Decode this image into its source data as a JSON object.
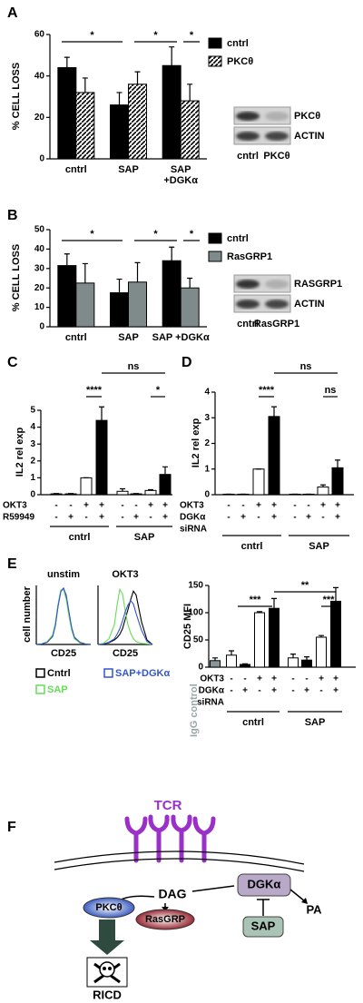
{
  "chart_data": [
    {
      "type": "bar",
      "panel": "A",
      "ylabel": "% CELL LOSS",
      "categories": [
        "cntrl",
        "SAP",
        [
          "SAP",
          "+DGKα"
        ]
      ],
      "series": [
        {
          "name": "cntrl",
          "color": "#000000",
          "values": [
            44,
            26,
            45
          ],
          "errors": [
            5,
            6,
            9
          ]
        },
        {
          "name": "PKCθ",
          "color": "#000000",
          "hatch": true,
          "values": [
            32,
            36,
            28
          ],
          "errors": [
            7,
            6,
            8
          ]
        }
      ],
      "ylim": [
        0,
        60
      ],
      "yticks": [
        0,
        20,
        40,
        60
      ],
      "annotations": [
        "*",
        "*",
        "*"
      ],
      "blot": {
        "bands": [
          "PKCθ",
          "ACTIN"
        ],
        "lanes": [
          "cntrl",
          "PKCθ"
        ]
      }
    },
    {
      "type": "bar",
      "panel": "B",
      "ylabel": "% CELL LOSS",
      "categories": [
        "cntrl",
        "SAP",
        "SAP +DGKα"
      ],
      "series": [
        {
          "name": "cntrl",
          "color": "#000000",
          "values": [
            31.5,
            17.5,
            34
          ],
          "errors": [
            6,
            7,
            7
          ]
        },
        {
          "name": "RasGRP1",
          "color": "#7f8a8a",
          "values": [
            22.5,
            23,
            20
          ],
          "errors": [
            10,
            10,
            5
          ]
        }
      ],
      "ylim": [
        0,
        50
      ],
      "yticks": [
        0,
        10,
        20,
        30,
        40,
        50
      ],
      "annotations": [
        "*",
        "*",
        "*"
      ],
      "blot": {
        "bands": [
          "RASGRP1",
          "ACTIN"
        ],
        "lanes": [
          "cntrl",
          "RasGRP1"
        ]
      }
    },
    {
      "type": "bar",
      "panel": "C",
      "ylabel": "IL2 rel exp",
      "values": [
        0.05,
        0.05,
        1,
        4.4,
        0.2,
        0.05,
        0.25,
        1.2
      ],
      "errors": [
        0.02,
        0.02,
        0,
        0.8,
        0.15,
        0.02,
        0.05,
        0.45
      ],
      "colors": [
        "#ffffff",
        "#000000",
        "#ffffff",
        "#000000",
        "#ffffff",
        "#000000",
        "#ffffff",
        "#000000"
      ],
      "ylim": [
        0,
        5
      ],
      "yticks": [
        0,
        1,
        2,
        3,
        4,
        5
      ],
      "conditions": [
        {
          "name": [
            "OKT3"
          ],
          "signs": [
            "-",
            "-",
            "+",
            "+",
            "-",
            "-",
            "+",
            "+"
          ]
        },
        {
          "name": [
            "R59949"
          ],
          "signs": [
            "-",
            "+",
            "-",
            "+",
            "-",
            "+",
            "-",
            "+"
          ]
        }
      ],
      "groups": [
        "cntrl",
        "SAP"
      ],
      "annotations": [
        "ns",
        "****",
        "*"
      ]
    },
    {
      "type": "bar",
      "panel": "D",
      "ylabel": "IL2 rel exp",
      "values": [
        0.02,
        0.02,
        1,
        3.05,
        0.02,
        0.02,
        0.3,
        1.05
      ],
      "errors": [
        0,
        0,
        0,
        0.38,
        0,
        0,
        0.08,
        0.3
      ],
      "colors": [
        "#ffffff",
        "#000000",
        "#ffffff",
        "#000000",
        "#ffffff",
        "#000000",
        "#ffffff",
        "#000000"
      ],
      "ylim": [
        0,
        4
      ],
      "yticks": [
        0,
        1,
        2,
        3,
        4
      ],
      "conditions": [
        {
          "name": [
            "OKT3"
          ],
          "signs": [
            "-",
            "-",
            "+",
            "+",
            "-",
            "-",
            "+",
            "+"
          ]
        },
        {
          "name": [
            "DGKα",
            "siRNA"
          ],
          "signs": [
            "-",
            "+",
            "-",
            "+",
            "-",
            "+",
            "-",
            "+"
          ]
        }
      ],
      "groups": [
        "cntrl",
        "SAP"
      ],
      "annotations": [
        "ns",
        "****",
        "ns"
      ]
    },
    {
      "type": "line",
      "panel": "E",
      "title": "unstim",
      "xlabel": "CD25",
      "ylabel": "cell number",
      "x": [
        0,
        10,
        20,
        30,
        35,
        40,
        45,
        50,
        55,
        60,
        65,
        70,
        80,
        90,
        100
      ],
      "xlim": [
        0,
        100
      ],
      "ylim": [
        0,
        105
      ],
      "series": [
        {
          "name": "Cntrl",
          "color": "#000000",
          "values": [
            0,
            1,
            4,
            15,
            35,
            70,
            95,
            100,
            85,
            55,
            28,
            12,
            3,
            1,
            0
          ]
        },
        {
          "name": "SAP",
          "color": "#66dd55",
          "values": [
            0,
            1,
            5,
            17,
            38,
            72,
            97,
            98,
            80,
            50,
            25,
            10,
            3,
            1,
            0
          ]
        },
        {
          "name": "SAP+DGKα",
          "color": "#3355cc",
          "values": [
            0,
            1,
            4,
            14,
            33,
            68,
            94,
            100,
            88,
            58,
            30,
            13,
            4,
            1,
            0
          ]
        }
      ]
    },
    {
      "type": "line",
      "title": "OKT3",
      "xlabel": "CD25",
      "x": [
        0,
        10,
        20,
        30,
        35,
        40,
        45,
        50,
        55,
        60,
        65,
        70,
        80,
        90,
        100
      ],
      "xlim": [
        0,
        100
      ],
      "ylim": [
        0,
        105
      ],
      "series": [
        {
          "color": "#000000",
          "values": [
            0,
            1,
            3,
            8,
            12,
            18,
            28,
            45,
            62,
            80,
            95,
            88,
            40,
            8,
            0
          ]
        },
        {
          "color": "#66dd55",
          "values": [
            0,
            2,
            10,
            35,
            70,
            98,
            90,
            60,
            35,
            20,
            10,
            5,
            2,
            1,
            0
          ]
        },
        {
          "color": "#3355cc",
          "values": [
            0,
            1,
            4,
            10,
            18,
            28,
            42,
            58,
            70,
            78,
            72,
            55,
            25,
            5,
            0
          ]
        }
      ]
    },
    {
      "type": "bar",
      "ylabel": "CD25 MFI",
      "side_label": "IgG control",
      "side_label_color": "#9aa5a8",
      "values": [
        12,
        22,
        5,
        100,
        108,
        17,
        13,
        55,
        121
      ],
      "errors": [
        5,
        8,
        1,
        2,
        18,
        7,
        6,
        3,
        25
      ],
      "colors": [
        "#8a9696",
        "#ffffff",
        "#000000",
        "#ffffff",
        "#000000",
        "#ffffff",
        "#000000",
        "#ffffff",
        "#000000"
      ],
      "ylim": [
        0,
        150
      ],
      "yticks": [
        0,
        50,
        100,
        150
      ],
      "conditions": [
        {
          "name": [
            "OKT3"
          ],
          "signs": [
            "-",
            "-",
            "+",
            "+",
            "-",
            "-",
            "+",
            "+"
          ]
        },
        {
          "name": [
            "DGKα",
            "siRNA"
          ],
          "signs": [
            "-",
            "+",
            "-",
            "+",
            "-",
            "+",
            "-",
            "+"
          ]
        }
      ],
      "groups": [
        "cntrl",
        "SAP"
      ],
      "annotations": [
        "***",
        "**",
        "***"
      ]
    }
  ],
  "diagram": {
    "panel": "F",
    "labels": {
      "tcr": "TCR",
      "dag": "DAG",
      "dgk": "DGKα",
      "pa": "PA",
      "pkc": "PKCθ",
      "rasgrp": "RasGRP",
      "sap": "SAP",
      "ricd": "RICD"
    }
  }
}
